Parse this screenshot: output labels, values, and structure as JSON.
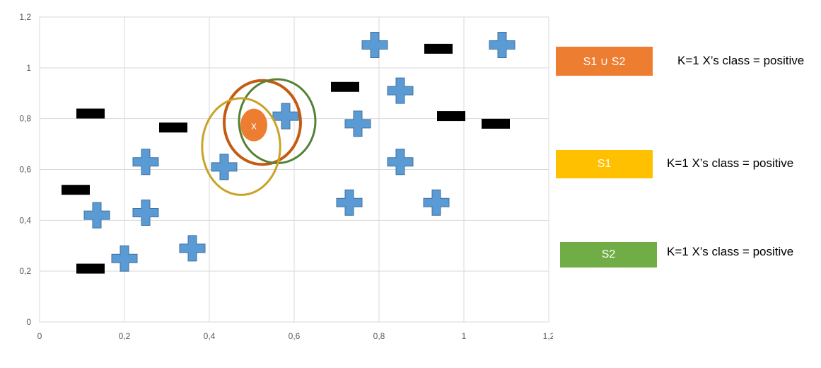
{
  "chart_data": {
    "type": "scatter",
    "title": "",
    "xlabel": "",
    "ylabel": "",
    "xlim": [
      0,
      1.2
    ],
    "ylim": [
      0,
      1.2
    ],
    "grid": true,
    "x_ticks": [
      "0",
      "0,2",
      "0,4",
      "0,6",
      "0,8",
      "1",
      "1,2"
    ],
    "y_ticks": [
      "0",
      "0,2",
      "0,4",
      "0,6",
      "0,8",
      "1",
      "1,2"
    ],
    "colors": {
      "positive": "#5b9bd5",
      "negative": "#000000",
      "x_point": "#ed7d31",
      "union": "#c55a11",
      "s1": "#c9a227",
      "s2": "#548235",
      "grid": "#d9d9d9"
    },
    "series": [
      {
        "marker": "plus",
        "x": [
          0.135,
          0.2,
          0.25,
          0.25,
          0.36,
          0.435,
          0.58,
          0.73,
          0.75,
          0.79,
          0.85,
          0.85,
          0.935,
          1.09
        ],
        "y": [
          0.42,
          0.25,
          0.63,
          0.43,
          0.29,
          0.61,
          0.81,
          0.47,
          0.78,
          1.09,
          0.91,
          0.63,
          0.47,
          1.09
        ]
      },
      {
        "marker": "minus",
        "x": [
          0.085,
          0.12,
          0.12,
          0.315,
          0.72,
          0.94,
          0.97,
          1.075
        ],
        "y": [
          0.52,
          0.82,
          0.21,
          0.765,
          0.925,
          1.075,
          0.81,
          0.78
        ]
      }
    ],
    "query_point": {
      "label": "x",
      "x": 0.505,
      "y": 0.775
    },
    "neighborhoods": [
      {
        "name": "S1 ∪ S2",
        "cx": 0.525,
        "cy": 0.785,
        "rx": 0.09,
        "ry": 0.165,
        "color": "#c55a11"
      },
      {
        "name": "S2",
        "cx": 0.56,
        "cy": 0.79,
        "rx": 0.09,
        "ry": 0.165,
        "color": "#548235"
      },
      {
        "name": "S1",
        "cx": 0.475,
        "cy": 0.69,
        "rx": 0.092,
        "ry": 0.19,
        "color": "#c9a227"
      }
    ]
  },
  "legend": [
    {
      "label": "S1 ∪ S2",
      "color": "#ed7d31",
      "description": "K=1  X’s class = positive"
    },
    {
      "label": "S1",
      "color": "#ffc000",
      "description": "K=1  X’s class = positive"
    },
    {
      "label": "S2",
      "color": "#70ad47",
      "description": "K=1  X’s class = positive"
    }
  ]
}
